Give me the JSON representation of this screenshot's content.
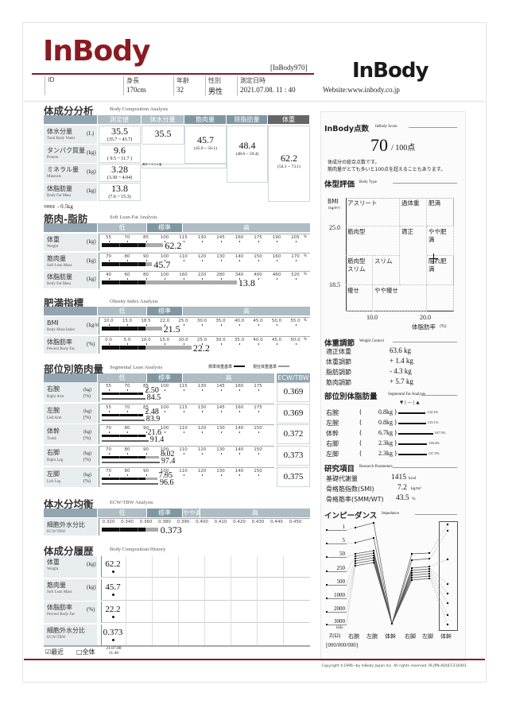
{
  "header": {
    "logo": "InBody",
    "model": "[InBody970]",
    "fields": [
      {
        "label": "ID",
        "value": ""
      },
      {
        "label": "身長",
        "value": "170cm"
      },
      {
        "label": "年齢",
        "value": "32"
      },
      {
        "label": "性別",
        "value": "男性"
      },
      {
        "label": "測定日時",
        "value": "2021.07.08. 11 : 40"
      }
    ],
    "right_logo": "InBody",
    "website": "Website:www.inbody.co.jp",
    "brand_color": "#8b1a22"
  },
  "body_comp": {
    "title": "体成分分析",
    "subtitle": "Body Composition Analysis",
    "columns": [
      "測定値",
      "体水分量",
      "筋肉量",
      "除脂肪量",
      "体重"
    ],
    "rows": [
      {
        "label": "体水分量",
        "en": "Total Body Water",
        "unit": "(L)",
        "value": "35.5",
        "range": "(35.7 ~ 43.7)"
      },
      {
        "label": "タンパク質量",
        "en": "Protein",
        "unit": "(kg)",
        "value": "9.6",
        "range": "( 9.5 ~ 11.7 )"
      },
      {
        "label": "ミネラル量",
        "en": "Minerals",
        "unit": "(kg)",
        "value": "3.28",
        "range": "(3.30 ~ 4.04)"
      },
      {
        "label": "体脂肪量",
        "en": "Body Fat Mass",
        "unit": "(kg)",
        "value": "13.8",
        "range": "(7.6 ~ 15.3)"
      }
    ],
    "tbw": "35.5",
    "muscle": {
      "value": "45.7",
      "range": "(45.9 ~ 56.1)"
    },
    "ffm": {
      "value": "48.4",
      "range": "(48.6 ~ 59.4)"
    },
    "weight": {
      "value": "62.2",
      "range": "(54.1 ~ 73.1)"
    },
    "mineral_note": "骨外ミネラル量",
    "clothes_label": "衣服重量",
    "clothes_value": "- 0.5kg"
  },
  "bands": {
    "low": "低",
    "normal": "標準",
    "high": "高",
    "slightly_high": "やや高",
    "ecw": "ECW/TBW"
  },
  "slf": {
    "title": "筋肉-脂肪",
    "subtitle": "Soft Lean-Fat Analysis",
    "rows": [
      {
        "label": "体重",
        "en": "Weight",
        "unit": "(kg)",
        "ticks": [
          "55",
          "70",
          "85",
          "100",
          "115",
          "130",
          "145",
          "160",
          "175",
          "190",
          "205"
        ],
        "value": "62.2",
        "percent_of_standard": 99
      },
      {
        "label": "筋肉量",
        "en": "Soft Lean Mass",
        "unit": "(kg)",
        "ticks": [
          "70",
          "80",
          "90",
          "100",
          "110",
          "120",
          "130",
          "140",
          "150",
          "160",
          "170"
        ],
        "value": "45.7",
        "percent_of_standard": 90
      },
      {
        "label": "体脂肪量",
        "en": "Body Fat Mass",
        "unit": "(kg)",
        "ticks": [
          "40",
          "60",
          "80",
          "100",
          "160",
          "220",
          "280",
          "340",
          "400",
          "460",
          "520"
        ],
        "value": "13.8",
        "percent_of_standard": 158
      }
    ]
  },
  "obesity": {
    "title": "肥満指標",
    "subtitle": "Obesity Index Analysis",
    "rows": [
      {
        "label": "BMI",
        "en": "Body Mass Index",
        "unit": "(kg/m²)",
        "ticks": [
          "10.0",
          "15.0",
          "18.5",
          "22.0",
          "25.0",
          "30.0",
          "35.0",
          "40.0",
          "45.0",
          "50.0",
          "55.0"
        ],
        "value": "21.5"
      },
      {
        "label": "体脂肪率",
        "en": "Percent Body Fat",
        "unit": "(%)",
        "ticks": [
          "0.0",
          "5.0",
          "10.0",
          "15.0",
          "20.0",
          "25.0",
          "30.0",
          "35.0",
          "40.0",
          "45.0",
          "50.0"
        ],
        "value": "22.2"
      }
    ]
  },
  "segmental": {
    "title": "部位別筋肉量",
    "subtitle": "Segmental Lean Analysis",
    "legend_std": "標準体重基準",
    "legend_cur": "現在体重基準",
    "rows": [
      {
        "label": "右腕",
        "en": "Right Arm",
        "ticks": [
          "55",
          "70",
          "85",
          "100",
          "115",
          "130",
          "145",
          "160",
          "175"
        ],
        "kg": "2.50",
        "pct": "84.5",
        "kg_bar_pct": 83,
        "ecw": "0.369"
      },
      {
        "label": "左腕",
        "en": "Left Arm",
        "ticks": [
          "55",
          "70",
          "85",
          "100",
          "115",
          "130",
          "145",
          "160",
          "175"
        ],
        "kg": "2.48",
        "pct": "83.9",
        "kg_bar_pct": 83,
        "ecw": "0.369"
      },
      {
        "label": "体幹",
        "en": "Trunk",
        "ticks": [
          "70",
          "80",
          "90",
          "100",
          "110",
          "120",
          "130",
          "140",
          "150"
        ],
        "kg": "21.6",
        "pct": "91.4",
        "kg_bar_pct": 90,
        "ecw": "0.372"
      },
      {
        "label": "右脚",
        "en": "Right Leg",
        "ticks": [
          "70",
          "80",
          "90",
          "100",
          "110",
          "120",
          "130",
          "140",
          "150"
        ],
        "kg": "8.02",
        "pct": "97.4",
        "kg_bar_pct": 97,
        "ecw": "0.373"
      },
      {
        "label": "左脚",
        "en": "Left Leg",
        "ticks": [
          "70",
          "80",
          "90",
          "100",
          "110",
          "120",
          "130",
          "140",
          "150"
        ],
        "kg": "7.95",
        "pct": "96.6",
        "kg_bar_pct": 96,
        "ecw": "0.375"
      }
    ],
    "unit_kg": "(kg)",
    "unit_pct": "(%)"
  },
  "ecw": {
    "title": "体水分均衡",
    "subtitle": "ECW/TBW Analysis",
    "label": "細胞外水分比",
    "en": "ECW/TBW",
    "ticks": [
      "0.320",
      "0.340",
      "0.360",
      "0.380",
      "0.390",
      "0.400",
      "0.410",
      "0.420",
      "0.430",
      "0.440",
      "0.450"
    ],
    "value": "0.373"
  },
  "history": {
    "title": "体成分履歴",
    "subtitle": "Body Composition History",
    "rows": [
      {
        "label": "体重",
        "en": "Weight",
        "unit": "(kg)",
        "value": "62.2"
      },
      {
        "label": "筋肉量",
        "en": "Soft Lean Mass",
        "unit": "(kg)",
        "value": "45.7"
      },
      {
        "label": "体脂肪率",
        "en": "Percent Body Fat",
        "unit": "(%)",
        "value": "22.2"
      },
      {
        "label": "細胞外水分比",
        "en": "ECW/TBW",
        "unit": "",
        "value": "0.373"
      }
    ],
    "recent": "☑最近",
    "all": "□全体",
    "date": "21.07.08",
    "time": "11:40"
  },
  "score": {
    "title": "InBody点数",
    "subtitle": "InBody Score",
    "value": "70",
    "max": "/ 100点",
    "desc1": "体成分の総合点数です。",
    "desc2": "筋肉量がとても多いと100点を超えることもあります。"
  },
  "body_type": {
    "title": "体型評価",
    "subtitle": "Body Type",
    "ylabel": "BMI",
    "yunit": "(kg/m²)",
    "y_ticks": [
      "25.0",
      "18.5"
    ],
    "x_ticks": [
      "10.0",
      "20.0"
    ],
    "xlabel": "体脂肪率",
    "xunit": "(%)",
    "cells": [
      "アスリート",
      "過体重",
      "肥満",
      "筋肉型",
      "適正",
      "やや肥満",
      "筋肉型スリム",
      "スリム",
      "隠れ肥満",
      "痩せ",
      "やや痩せ"
    ],
    "point": {
      "pbf": 22.2,
      "bmi": 21.5
    }
  },
  "weight_control": {
    "title": "体重調節",
    "subtitle": "Weight Control",
    "rows": [
      {
        "label": "適正体重",
        "value": "63.6 kg"
      },
      {
        "label": "体重調節",
        "value": "+ 1.4 kg"
      },
      {
        "label": "脂肪調節",
        "value": "- 4.3 kg"
      },
      {
        "label": "筋肉調節",
        "value": "+ 5.7 kg"
      }
    ]
  },
  "seg_fat": {
    "title": "部位別体脂肪量",
    "subtitle": "Segmental Fat Analysis",
    "symbols": "▼ | ― | ▲",
    "rows": [
      {
        "label": "右腕",
        "kg": "0.8kg",
        "pct": "132.2%"
      },
      {
        "label": "左腕",
        "kg": "0.8kg",
        "pct": "133.1%"
      },
      {
        "label": "体幹",
        "kg": "6.7kg",
        "pct": "167.5%"
      },
      {
        "label": "右脚",
        "kg": "2.3kg",
        "pct": "138.4%"
      },
      {
        "label": "左脚",
        "kg": "2.3kg",
        "pct": "137.5%"
      }
    ]
  },
  "research": {
    "title": "研究項目",
    "subtitle": "Research Parameters",
    "rows": [
      {
        "label": "基礎代謝量",
        "value": "1415",
        "unit": "kcal"
      },
      {
        "label": "骨格筋指数(SMI)",
        "value": "7.2",
        "unit": "kg/m²"
      },
      {
        "label": "骨格筋率(SMM/WT)",
        "value": "43.5",
        "unit": "%"
      }
    ]
  },
  "impedance": {
    "title": "インピーダンス",
    "subtitle": "Impedance",
    "freqs": [
      "1",
      "5",
      "50",
      "250",
      "500",
      "1000",
      "2000",
      "3000"
    ],
    "khz": "kHz",
    "z": "Z(Ω)",
    "segments": [
      "右腕",
      "左腕",
      "体幹",
      "右脚",
      "左脚",
      "体幹"
    ],
    "code": "[000/000/000]"
  },
  "footer": {
    "copyright": "Copyright ©1996~by InBody Japan Inc. All rights reserved. IR-JPN-ADULT-210401"
  }
}
